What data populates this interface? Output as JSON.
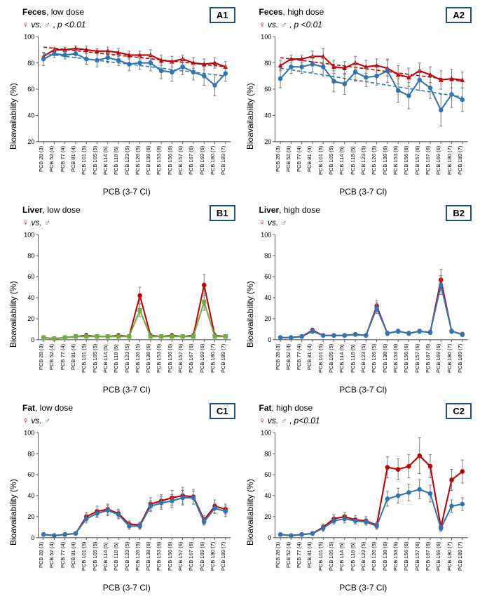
{
  "categories": [
    "PCB 28 (3)",
    "PCB 52 (4)",
    "PCB 77 (4)",
    "PCB 81 (4)",
    "PCB 101 (5)",
    "PCB 105 (5)",
    "PCB 114 (5)",
    "PCB 118 (5)",
    "PCB 123 (5)",
    "PCB 126 (5)",
    "PCB 138 (6)",
    "PCB 153 (6)",
    "PCB 156 (6)",
    "PCB 157 (6)",
    "PCB 167 (6)",
    "PCB 169 (6)",
    "PCB 180 (7)",
    "PCB 189 (7)"
  ],
  "xlabel": "PCB (3-7 Cl)",
  "ylabel": "Bioavailability (%)",
  "yticks_20": [
    20,
    40,
    60,
    80,
    100
  ],
  "yticks_0": [
    0,
    20,
    40,
    60,
    80,
    100
  ],
  "colors": {
    "female": "#c00000",
    "male": "#2e75b6",
    "male_line": "#2e75b6",
    "female_line": "#c00000",
    "green": "#70ad47",
    "error": "#7f7f7f",
    "axis": "#595959",
    "tagborder": "#1f4e79"
  },
  "panels": {
    "A1": {
      "tag": "A1",
      "title_bold": "Feces",
      "title_rest": ", low dose",
      "show_p": true,
      "pval": "p <0.01",
      "ymin": 20,
      "ymax": 100,
      "series": [
        {
          "color": "#c00000",
          "marker": "triangle",
          "dash": true,
          "trend": {
            "y0": 92,
            "y1": 77
          },
          "y": [
            85,
            90,
            90,
            91,
            90,
            89,
            89,
            88,
            86,
            86,
            86,
            82,
            81,
            83,
            80,
            79,
            80,
            77
          ],
          "err": [
            3,
            2,
            2,
            2,
            3,
            2,
            3,
            3,
            3,
            3,
            4,
            4,
            4,
            3,
            4,
            4,
            4,
            4
          ]
        },
        {
          "color": "#2e75b6",
          "marker": "circle",
          "dash": true,
          "trend": {
            "y0": 87,
            "y1": 70
          },
          "y": [
            83,
            87,
            86,
            87,
            83,
            82,
            84,
            82,
            79,
            80,
            80,
            74,
            73,
            77,
            73,
            70,
            63,
            72
          ],
          "err": [
            5,
            3,
            3,
            3,
            4,
            5,
            4,
            4,
            5,
            5,
            6,
            6,
            7,
            6,
            6,
            7,
            8,
            6
          ]
        }
      ]
    },
    "A2": {
      "tag": "A2",
      "title_bold": "Feces",
      "title_rest": ", high dose",
      "show_p": true,
      "pval": "p <0.01",
      "ymin": 20,
      "ymax": 100,
      "series": [
        {
          "color": "#c00000",
          "marker": "triangle",
          "dash": true,
          "trend": {
            "y0": 84,
            "y1": 66
          },
          "y": [
            78,
            83,
            83,
            85,
            85,
            77,
            76,
            80,
            77,
            78,
            76,
            71,
            69,
            74,
            71,
            67,
            68,
            67
          ],
          "err": [
            4,
            3,
            3,
            4,
            6,
            5,
            5,
            5,
            5,
            5,
            6,
            7,
            7,
            6,
            6,
            7,
            7,
            6
          ]
        },
        {
          "color": "#2e75b6",
          "marker": "circle",
          "dash": true,
          "trend": {
            "y0": 76,
            "y1": 54
          },
          "y": [
            68,
            77,
            77,
            79,
            77,
            66,
            64,
            73,
            69,
            70,
            74,
            59,
            55,
            67,
            61,
            44,
            56,
            52
          ],
          "err": [
            7,
            5,
            5,
            6,
            7,
            8,
            8,
            7,
            7,
            7,
            9,
            9,
            10,
            8,
            8,
            12,
            10,
            9
          ]
        }
      ]
    },
    "B1": {
      "tag": "B1",
      "title_bold": "Liver",
      "title_rest": ", low dose",
      "show_p": false,
      "ymin": 0,
      "ymax": 100,
      "series": [
        {
          "color": "#c00000",
          "marker": "circle",
          "dash": false,
          "y": [
            2,
            1,
            2,
            3,
            4,
            3,
            3,
            4,
            3,
            42,
            4,
            3,
            4,
            3,
            4,
            52,
            4,
            3
          ],
          "err": [
            1,
            1,
            1,
            1,
            2,
            1,
            1,
            1,
            1,
            8,
            1,
            1,
            1,
            1,
            1,
            10,
            1,
            1
          ]
        },
        {
          "color": "#70ad47",
          "marker": "square",
          "dash": false,
          "y": [
            2,
            1,
            2,
            3,
            3,
            3,
            3,
            3,
            3,
            28,
            3,
            3,
            3,
            3,
            3,
            36,
            3,
            3
          ],
          "err": [
            1,
            1,
            1,
            1,
            1,
            1,
            1,
            1,
            1,
            6,
            1,
            1,
            1,
            1,
            1,
            8,
            1,
            1
          ]
        }
      ]
    },
    "B2": {
      "tag": "B2",
      "title_bold": "Liver",
      "title_rest": ", high dose",
      "show_p": false,
      "ymin": 0,
      "ymax": 100,
      "series": [
        {
          "color": "#c00000",
          "marker": "circle",
          "dash": false,
          "y": [
            2,
            2,
            3,
            9,
            4,
            4,
            4,
            5,
            4,
            32,
            6,
            8,
            6,
            8,
            7,
            57,
            8,
            5
          ],
          "err": [
            1,
            1,
            1,
            2,
            1,
            1,
            1,
            1,
            1,
            5,
            2,
            2,
            2,
            2,
            2,
            10,
            2,
            2
          ]
        },
        {
          "color": "#2e75b6",
          "marker": "circle",
          "dash": false,
          "y": [
            2,
            2,
            3,
            8,
            4,
            4,
            4,
            5,
            4,
            30,
            6,
            8,
            6,
            8,
            7,
            52,
            8,
            5
          ],
          "err": [
            1,
            1,
            1,
            2,
            1,
            1,
            1,
            1,
            1,
            5,
            2,
            2,
            2,
            2,
            2,
            9,
            2,
            2
          ]
        }
      ]
    },
    "C1": {
      "tag": "C1",
      "title_bold": "Fat",
      "title_rest": ", low dose",
      "show_p": false,
      "ymin": 0,
      "ymax": 100,
      "series": [
        {
          "color": "#c00000",
          "marker": "circle",
          "dash": false,
          "y": [
            3,
            2,
            3,
            4,
            20,
            25,
            27,
            23,
            13,
            12,
            32,
            35,
            38,
            40,
            39,
            17,
            30,
            27
          ],
          "err": [
            1,
            1,
            1,
            1,
            4,
            5,
            5,
            4,
            3,
            3,
            6,
            6,
            7,
            8,
            7,
            4,
            6,
            5
          ]
        },
        {
          "color": "#2e75b6",
          "marker": "circle",
          "dash": false,
          "y": [
            3,
            2,
            3,
            4,
            18,
            23,
            26,
            22,
            11,
            11,
            30,
            33,
            35,
            38,
            38,
            15,
            28,
            25
          ],
          "err": [
            1,
            1,
            1,
            1,
            4,
            4,
            5,
            4,
            3,
            3,
            5,
            6,
            6,
            7,
            6,
            3,
            5,
            5
          ]
        }
      ]
    },
    "C2": {
      "tag": "C2",
      "title_bold": "Fat",
      "title_rest": ", high dose",
      "show_p": true,
      "pval": "p<0.01",
      "ymin": 0,
      "ymax": 100,
      "series": [
        {
          "color": "#c00000",
          "marker": "circle",
          "dash": false,
          "y": [
            3,
            2,
            3,
            4,
            10,
            18,
            20,
            17,
            16,
            12,
            67,
            65,
            68,
            78,
            68,
            10,
            55,
            63
          ],
          "err": [
            1,
            1,
            1,
            1,
            3,
            4,
            4,
            4,
            4,
            3,
            10,
            10,
            11,
            17,
            11,
            3,
            10,
            11
          ]
        },
        {
          "color": "#2e75b6",
          "marker": "circle",
          "dash": false,
          "y": [
            3,
            2,
            3,
            4,
            9,
            16,
            18,
            16,
            15,
            11,
            37,
            40,
            43,
            46,
            42,
            9,
            30,
            32
          ],
          "err": [
            1,
            1,
            1,
            1,
            3,
            3,
            4,
            3,
            3,
            3,
            7,
            7,
            8,
            9,
            8,
            3,
            6,
            6
          ]
        }
      ]
    }
  }
}
